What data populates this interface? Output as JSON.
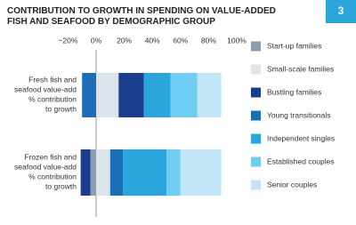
{
  "chart_data": {
    "type": "stacked_barh",
    "title": "CONTRIBUTION TO GROWTH IN SPENDING ON VALUE-ADDED\nFISH AND SEAFOOD BY DEMOGRAPHIC GROUP",
    "figure_label": "3",
    "categories": [
      "Fresh fish and\nseafood value-add\n% contribution\nto growth",
      "Frozen fish and\nseafood value-add\n% contribution\nto growth"
    ],
    "series": [
      {
        "name": "Start-up families",
        "color": "#8d9dab",
        "values": [
          0,
          -4
        ]
      },
      {
        "name": "Small-scale families",
        "color": "#dce5ee",
        "values": [
          16,
          10
        ]
      },
      {
        "name": "Bustling families",
        "color": "#1b3f8e",
        "values": [
          18,
          -7
        ]
      },
      {
        "name": "Young transitionals",
        "color": "#1c6fb6",
        "values": [
          -10,
          9
        ]
      },
      {
        "name": "Independent singles",
        "color": "#2aa6dc",
        "values": [
          19,
          31
        ]
      },
      {
        "name": "Established couples",
        "color": "#6ecdf0",
        "values": [
          19,
          10
        ]
      },
      {
        "name": "Senior couples",
        "color": "#c0e6f7",
        "values": [
          17,
          29
        ]
      }
    ],
    "xlim": [
      -20,
      100
    ],
    "xticks": [
      {
        "value": -20,
        "label": "−20%"
      },
      {
        "value": 0,
        "label": "0%"
      },
      {
        "value": 20,
        "label": "20%"
      },
      {
        "value": 40,
        "label": "40%"
      },
      {
        "value": 60,
        "label": "60%"
      },
      {
        "value": 80,
        "label": "80%"
      },
      {
        "value": 100,
        "label": "100%"
      }
    ],
    "zero_line": true,
    "legend": "right"
  }
}
